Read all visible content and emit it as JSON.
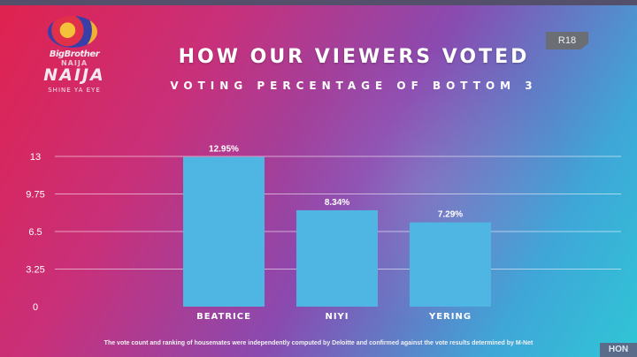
{
  "logo": {
    "line1": "BigBrother",
    "line2": "NAIJA",
    "line3": "NAIJA",
    "line4": "SHINE YA EYE"
  },
  "badge": "R18",
  "corner_tag": "HON",
  "colors": {
    "bar": "#4fb6e3",
    "gridline": "rgba(255,255,255,0.55)",
    "text": "#ffffff"
  },
  "footnote": "The vote count and ranking of housemates were independently computed by Deloitte and confirmed against the vote results determined by M-Net",
  "chart_data": {
    "type": "bar",
    "title": "HOW OUR VIEWERS VOTED",
    "subtitle": "VOTING PERCENTAGE OF BOTTOM 3",
    "categories": [
      "BEATRICE",
      "NIYI",
      "YERING"
    ],
    "values": [
      12.95,
      8.34,
      7.29
    ],
    "data_labels": [
      "12.95%",
      "8.34%",
      "7.29%"
    ],
    "ylim": [
      0,
      13
    ],
    "yticks": [
      0,
      3.25,
      6.5,
      9.75,
      13
    ],
    "ytick_labels": [
      "0",
      "3.25",
      "6.5",
      "9.75",
      "13"
    ],
    "grid": true,
    "xlabel": "",
    "ylabel": ""
  }
}
